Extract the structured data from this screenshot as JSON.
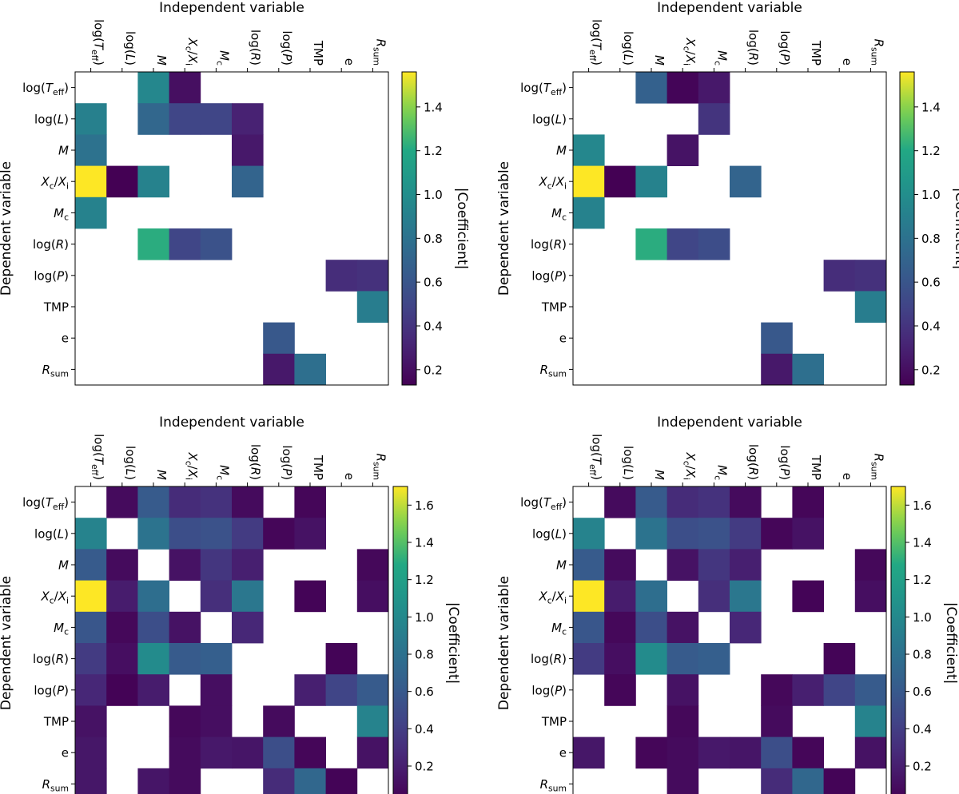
{
  "chart_data": [
    {
      "type": "heatmap",
      "title": "Independent variable",
      "ylabel": "Dependent variable",
      "colorbar_label": "|Coefficient|",
      "colormap": "viridis",
      "vrange": [
        0.13,
        1.56
      ],
      "colorbar_ticks": [
        0.2,
        0.4,
        0.6,
        0.8,
        1.0,
        1.2,
        1.4
      ],
      "colorbar_tick_labels": [
        "0.2",
        "0.4",
        "0.6",
        "0.8",
        "1.0",
        "1.2",
        "1.4"
      ],
      "x_labels": [
        "log(T_eff)",
        "log(L)",
        "M",
        "X_c/X_i",
        "M_c",
        "log(R)",
        "log(P)",
        "TMP",
        "e",
        "R_sum"
      ],
      "y_labels": [
        "log(T_eff)",
        "log(L)",
        "M",
        "X_c/X_i",
        "M_c",
        "log(R)",
        "log(P)",
        "TMP",
        "e",
        "R_sum"
      ],
      "values": [
        [
          null,
          null,
          0.95,
          0.2,
          null,
          null,
          null,
          null,
          null,
          null
        ],
        [
          0.9,
          null,
          0.72,
          0.5,
          0.5,
          0.3,
          null,
          null,
          null,
          null
        ],
        [
          0.8,
          null,
          null,
          null,
          null,
          0.25,
          null,
          null,
          null,
          null
        ],
        [
          1.56,
          0.13,
          0.92,
          null,
          null,
          0.7,
          null,
          null,
          null,
          null
        ],
        [
          0.92,
          null,
          null,
          null,
          null,
          null,
          null,
          null,
          null,
          null
        ],
        [
          null,
          null,
          1.22,
          0.5,
          0.58,
          null,
          null,
          null,
          null,
          null
        ],
        [
          null,
          null,
          null,
          null,
          null,
          null,
          null,
          null,
          0.36,
          0.38
        ],
        [
          null,
          null,
          null,
          null,
          null,
          null,
          null,
          null,
          null,
          0.88
        ],
        [
          null,
          null,
          null,
          null,
          null,
          null,
          0.62,
          null,
          null,
          null
        ],
        [
          null,
          null,
          null,
          null,
          null,
          null,
          0.25,
          0.78,
          null,
          null
        ]
      ]
    },
    {
      "type": "heatmap",
      "title": "Independent variable",
      "ylabel": "Dependent variable",
      "colorbar_label": "|Coefficient|",
      "colormap": "viridis",
      "vrange": [
        0.13,
        1.56
      ],
      "colorbar_ticks": [
        0.2,
        0.4,
        0.6,
        0.8,
        1.0,
        1.2,
        1.4
      ],
      "colorbar_tick_labels": [
        "0.2",
        "0.4",
        "0.6",
        "0.8",
        "1.0",
        "1.2",
        "1.4"
      ],
      "x_labels": [
        "log(T_eff)",
        "log(L)",
        "M",
        "X_c/X_i",
        "M_c",
        "log(R)",
        "log(P)",
        "TMP",
        "e",
        "R_sum"
      ],
      "y_labels": [
        "log(T_eff)",
        "log(L)",
        "M",
        "X_c/X_i",
        "M_c",
        "log(R)",
        "log(P)",
        "TMP",
        "e",
        "R_sum"
      ],
      "values": [
        [
          null,
          null,
          0.68,
          0.15,
          0.25,
          null,
          null,
          null,
          null,
          null
        ],
        [
          null,
          null,
          null,
          null,
          0.4,
          null,
          null,
          null,
          null,
          null
        ],
        [
          0.95,
          null,
          null,
          0.22,
          null,
          null,
          null,
          null,
          null,
          null
        ],
        [
          1.56,
          0.13,
          0.92,
          null,
          null,
          0.7,
          null,
          null,
          null,
          null
        ],
        [
          0.92,
          null,
          null,
          null,
          null,
          null,
          null,
          null,
          null,
          null
        ],
        [
          null,
          null,
          1.22,
          0.5,
          0.55,
          null,
          null,
          null,
          null,
          null
        ],
        [
          null,
          null,
          null,
          null,
          null,
          null,
          null,
          null,
          0.36,
          0.38
        ],
        [
          null,
          null,
          null,
          null,
          null,
          null,
          null,
          null,
          null,
          0.88
        ],
        [
          null,
          null,
          null,
          null,
          null,
          null,
          0.62,
          null,
          null,
          null
        ],
        [
          null,
          null,
          null,
          null,
          null,
          null,
          0.25,
          0.78,
          null,
          null
        ]
      ]
    },
    {
      "type": "heatmap",
      "title": "Independent variable",
      "ylabel": "Dependent variable",
      "colorbar_label": "|Coefficient|",
      "colormap": "viridis",
      "vrange": [
        0.02,
        1.7
      ],
      "colorbar_ticks": [
        0.2,
        0.4,
        0.6,
        0.8,
        1.0,
        1.2,
        1.4,
        1.6
      ],
      "colorbar_tick_labels": [
        "0.2",
        "0.4",
        "0.6",
        "0.8",
        "1.0",
        "1.2",
        "1.4",
        "1.6"
      ],
      "x_labels": [
        "log(T_eff)",
        "log(L)",
        "M",
        "X_c/X_i",
        "M_c",
        "log(R)",
        "log(P)",
        "TMP",
        "e",
        "R_sum"
      ],
      "y_labels": [
        "log(T_eff)",
        "log(L)",
        "M",
        "X_c/X_i",
        "M_c",
        "log(R)",
        "log(P)",
        "TMP",
        "e",
        "R_sum"
      ],
      "values": [
        [
          null,
          0.08,
          0.62,
          0.28,
          0.32,
          0.08,
          null,
          0.05,
          null,
          null
        ],
        [
          0.95,
          null,
          0.82,
          0.52,
          0.55,
          0.38,
          0.05,
          0.12,
          null,
          null
        ],
        [
          0.62,
          0.08,
          null,
          0.12,
          0.35,
          0.2,
          null,
          null,
          null,
          0.06
        ],
        [
          1.7,
          0.18,
          0.78,
          null,
          0.3,
          0.85,
          null,
          0.04,
          null,
          0.1
        ],
        [
          0.58,
          0.06,
          0.52,
          0.12,
          null,
          0.25,
          null,
          null,
          null,
          null
        ],
        [
          0.38,
          0.1,
          1.02,
          0.62,
          0.65,
          null,
          null,
          null,
          0.04,
          null
        ],
        [
          0.25,
          0.03,
          0.18,
          null,
          0.1,
          null,
          null,
          0.2,
          0.45,
          0.62
        ],
        [
          0.12,
          null,
          null,
          0.06,
          0.1,
          null,
          0.08,
          null,
          null,
          0.95
        ],
        [
          0.15,
          null,
          null,
          0.08,
          0.16,
          0.14,
          0.52,
          0.05,
          null,
          0.12
        ],
        [
          0.15,
          null,
          0.14,
          0.08,
          null,
          null,
          0.28,
          0.72,
          0.04,
          null
        ]
      ]
    },
    {
      "type": "heatmap",
      "title": "Independent variable",
      "ylabel": "Dependent variable",
      "colorbar_label": "|Coefficient|",
      "colormap": "viridis",
      "vrange": [
        0.02,
        1.7
      ],
      "colorbar_ticks": [
        0.2,
        0.4,
        0.6,
        0.8,
        1.0,
        1.2,
        1.4,
        1.6
      ],
      "colorbar_tick_labels": [
        "0.2",
        "0.4",
        "0.6",
        "0.8",
        "1.0",
        "1.2",
        "1.4",
        "1.6"
      ],
      "x_labels": [
        "log(T_eff)",
        "log(L)",
        "M",
        "X_c/X_i",
        "M_c",
        "log(R)",
        "log(P)",
        "TMP",
        "e",
        "R_sum"
      ],
      "y_labels": [
        "log(T_eff)",
        "log(L)",
        "M",
        "X_c/X_i",
        "M_c",
        "log(R)",
        "log(P)",
        "TMP",
        "e",
        "R_sum"
      ],
      "values": [
        [
          null,
          0.08,
          0.62,
          0.28,
          0.32,
          0.08,
          null,
          0.05,
          null,
          null
        ],
        [
          0.95,
          null,
          0.82,
          0.52,
          0.55,
          0.38,
          0.05,
          0.12,
          null,
          null
        ],
        [
          0.62,
          0.08,
          null,
          0.12,
          0.35,
          0.2,
          null,
          null,
          null,
          0.06
        ],
        [
          1.7,
          0.18,
          0.78,
          null,
          0.3,
          0.85,
          null,
          0.04,
          null,
          0.1
        ],
        [
          0.58,
          0.06,
          0.52,
          0.12,
          null,
          0.25,
          null,
          null,
          null,
          null
        ],
        [
          0.38,
          0.1,
          1.02,
          0.62,
          0.65,
          null,
          null,
          null,
          0.04,
          null
        ],
        [
          null,
          0.05,
          null,
          0.12,
          null,
          null,
          0.06,
          0.2,
          0.45,
          0.62
        ],
        [
          null,
          null,
          null,
          0.06,
          null,
          null,
          0.08,
          null,
          null,
          0.95
        ],
        [
          0.15,
          null,
          0.05,
          0.08,
          0.16,
          0.14,
          0.52,
          0.05,
          null,
          0.12
        ],
        [
          null,
          null,
          null,
          0.08,
          null,
          null,
          0.28,
          0.72,
          0.04,
          null
        ]
      ]
    }
  ]
}
